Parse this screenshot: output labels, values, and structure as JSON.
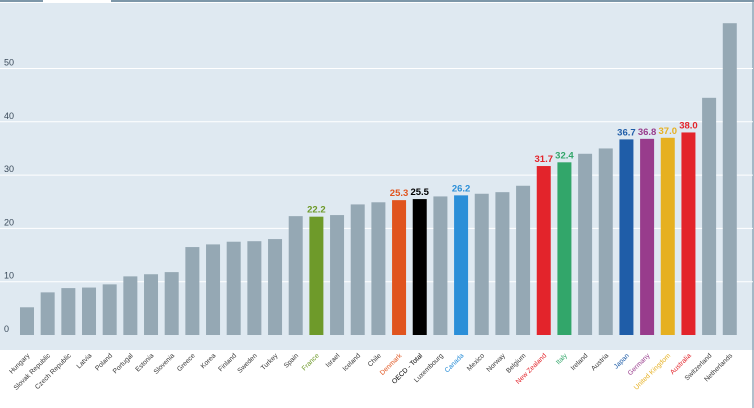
{
  "colors": {
    "plot_background": "#dfe9f1",
    "default_bar": "#95a8b4",
    "frame": "#7d97a9",
    "tab": "#ffffff"
  },
  "chart_data": {
    "type": "bar",
    "ylim": [
      0,
      58
    ],
    "yticks": [
      0,
      10,
      20,
      30,
      40,
      50
    ],
    "grid": true,
    "categories": [
      "Hungary",
      "Slovak Republic",
      "Czech Republic",
      "Latvia",
      "Poland",
      "Portugal",
      "Estonia",
      "Slovenia",
      "Greece",
      "Korea",
      "Finland",
      "Sweden",
      "Turkey",
      "Spain",
      "France",
      "Israel",
      "Iceland",
      "Chile",
      "Denmark",
      "OECD - Total",
      "Luxembourg",
      "Canada",
      "Mexico",
      "Norway",
      "Belgium",
      "New Zealand",
      "Italy",
      "Ireland",
      "Austria",
      "Japan",
      "Germany",
      "United Kingdom",
      "Australia",
      "Switzerland",
      "Netherlands"
    ],
    "values": [
      5.2,
      8.0,
      8.8,
      8.9,
      9.5,
      11.0,
      11.4,
      11.8,
      16.5,
      17.0,
      17.5,
      17.6,
      18.0,
      22.3,
      22.2,
      22.5,
      24.5,
      24.9,
      25.3,
      25.5,
      26.0,
      26.2,
      26.5,
      26.8,
      28.0,
      31.7,
      32.4,
      34.0,
      35.0,
      36.7,
      36.8,
      37.0,
      38.0,
      44.5,
      58.5
    ],
    "highlights": [
      {
        "category": "France",
        "color": "#6e9a2a",
        "label": "22.2"
      },
      {
        "category": "Denmark",
        "color": "#e0541e",
        "label": "25.3"
      },
      {
        "category": "OECD - Total",
        "color": "#000000",
        "label": "25.5"
      },
      {
        "category": "Canada",
        "color": "#2b8fd8",
        "label": "26.2"
      },
      {
        "category": "New Zealand",
        "color": "#e3242b",
        "label": "31.7"
      },
      {
        "category": "Italy",
        "color": "#32a66a",
        "label": "32.4"
      },
      {
        "category": "Japan",
        "color": "#1f5da8",
        "label": "36.7"
      },
      {
        "category": "Germany",
        "color": "#983c8c",
        "label": "36.8"
      },
      {
        "category": "United Kingdom",
        "color": "#e6b020",
        "label": "37.0"
      },
      {
        "category": "Australia",
        "color": "#e3242b",
        "label": "38.0"
      }
    ]
  }
}
